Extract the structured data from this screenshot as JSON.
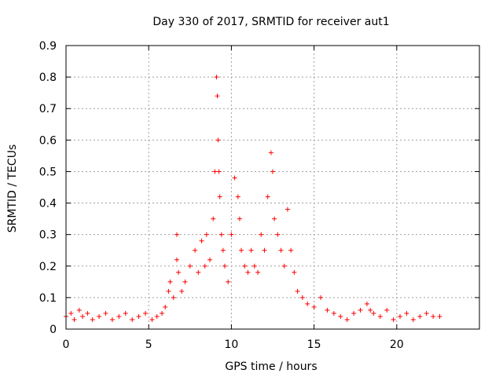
{
  "chart_data": {
    "type": "scatter",
    "title": "Day 330 of 2017, SRMTID for receiver aut1",
    "xlabel": "GPS time / hours",
    "ylabel": "SRMTID / TECUs",
    "xlim": [
      0,
      25
    ],
    "ylim": [
      0,
      0.9
    ],
    "xticks": [
      0,
      5,
      10,
      15,
      20
    ],
    "yticks": [
      0,
      0.1,
      0.2,
      0.3,
      0.4,
      0.5,
      0.6,
      0.7,
      0.8,
      0.9
    ],
    "xtick_labels": [
      "0",
      "5",
      "10",
      "15",
      "20"
    ],
    "ytick_labels": [
      "0",
      "0.1",
      "0.2",
      "0.3",
      "0.4",
      "0.5",
      "0.6",
      "0.7",
      "0.8",
      "0.9"
    ],
    "grid": true,
    "marker": "+",
    "color": "#ff0000",
    "series": [
      {
        "name": "aut1",
        "x": [
          0.0,
          0.3,
          0.5,
          0.8,
          1.0,
          1.3,
          1.6,
          2.0,
          2.4,
          2.8,
          3.2,
          3.6,
          4.0,
          4.4,
          4.8,
          5.2,
          5.5,
          5.8,
          6.0,
          6.2,
          6.3,
          6.5,
          6.7,
          6.7,
          6.8,
          7.0,
          7.2,
          7.5,
          7.8,
          8.0,
          8.2,
          8.4,
          8.5,
          8.7,
          8.9,
          9.0,
          9.1,
          9.15,
          9.2,
          9.25,
          9.3,
          9.4,
          9.5,
          9.6,
          9.8,
          10.0,
          10.2,
          10.4,
          10.5,
          10.6,
          10.8,
          11.0,
          11.2,
          11.4,
          11.6,
          11.8,
          12.0,
          12.2,
          12.4,
          12.5,
          12.6,
          12.8,
          13.0,
          13.2,
          13.4,
          13.6,
          13.8,
          14.0,
          14.3,
          14.6,
          15.0,
          15.4,
          15.8,
          16.2,
          16.6,
          17.0,
          17.4,
          17.8,
          18.2,
          18.4,
          18.6,
          19.0,
          19.4,
          19.8,
          20.2,
          20.6,
          21.0,
          21.4,
          21.8,
          22.2,
          22.6
        ],
        "y": [
          0.04,
          0.05,
          0.03,
          0.06,
          0.04,
          0.05,
          0.03,
          0.04,
          0.05,
          0.03,
          0.04,
          0.05,
          0.03,
          0.04,
          0.05,
          0.03,
          0.04,
          0.05,
          0.07,
          0.12,
          0.15,
          0.1,
          0.3,
          0.22,
          0.18,
          0.12,
          0.15,
          0.2,
          0.25,
          0.18,
          0.28,
          0.2,
          0.3,
          0.22,
          0.35,
          0.5,
          0.8,
          0.74,
          0.6,
          0.5,
          0.42,
          0.3,
          0.25,
          0.2,
          0.15,
          0.3,
          0.48,
          0.42,
          0.35,
          0.25,
          0.2,
          0.18,
          0.25,
          0.2,
          0.18,
          0.3,
          0.25,
          0.42,
          0.56,
          0.5,
          0.35,
          0.3,
          0.25,
          0.2,
          0.38,
          0.25,
          0.18,
          0.12,
          0.1,
          0.08,
          0.07,
          0.1,
          0.06,
          0.05,
          0.04,
          0.03,
          0.05,
          0.06,
          0.08,
          0.06,
          0.05,
          0.04,
          0.06,
          0.03,
          0.04,
          0.05,
          0.03,
          0.04,
          0.05,
          0.04,
          0.04
        ]
      }
    ]
  }
}
